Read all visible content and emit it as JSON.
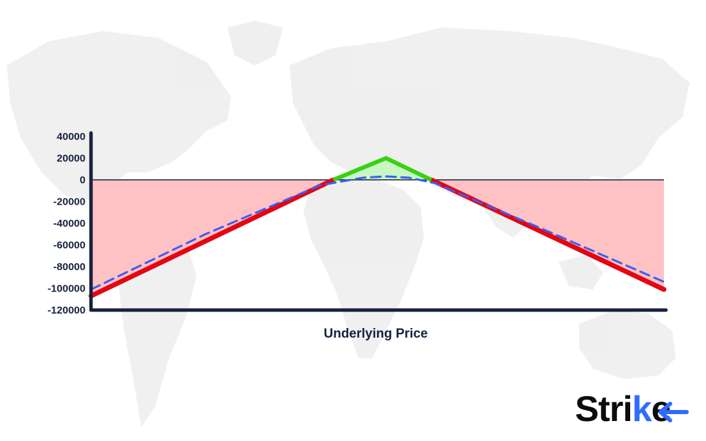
{
  "chart_data": {
    "type": "area",
    "title": "",
    "xlabel": "Underlying Price",
    "ylabel": "",
    "ylim": [
      -120000,
      40000
    ],
    "yticks": [
      "40000",
      "20000",
      "0",
      "-20000",
      "-40000",
      "-60000",
      "-80000",
      "-100000",
      "-120000"
    ],
    "xlim": [
      0,
      100
    ],
    "grid": false,
    "legend": "none",
    "series": [
      {
        "style": "solid",
        "color": "#e30613",
        "x": [
          0,
          42.3,
          51.5,
          59.4,
          100
        ],
        "y": [
          -107000,
          0,
          20000,
          0,
          -101000
        ]
      },
      {
        "style": "dashed",
        "color": "#3d5ef0",
        "x": [
          0,
          20,
          40,
          47.5,
          51.5,
          55.5,
          60,
          80,
          100
        ],
        "y": [
          -101000,
          -50000,
          -5000,
          2000,
          3200,
          2000,
          -3000,
          -48000,
          -94000
        ]
      }
    ],
    "fills": {
      "loss_color": "#ffc2c4",
      "profit_color": "#c9f7c4",
      "profit_line_color": "#3ad115"
    }
  },
  "brand": {
    "name_part1": "Stri",
    "name_part2": "k",
    "name_part3": "e",
    "accent_color": "#2f6bff"
  }
}
